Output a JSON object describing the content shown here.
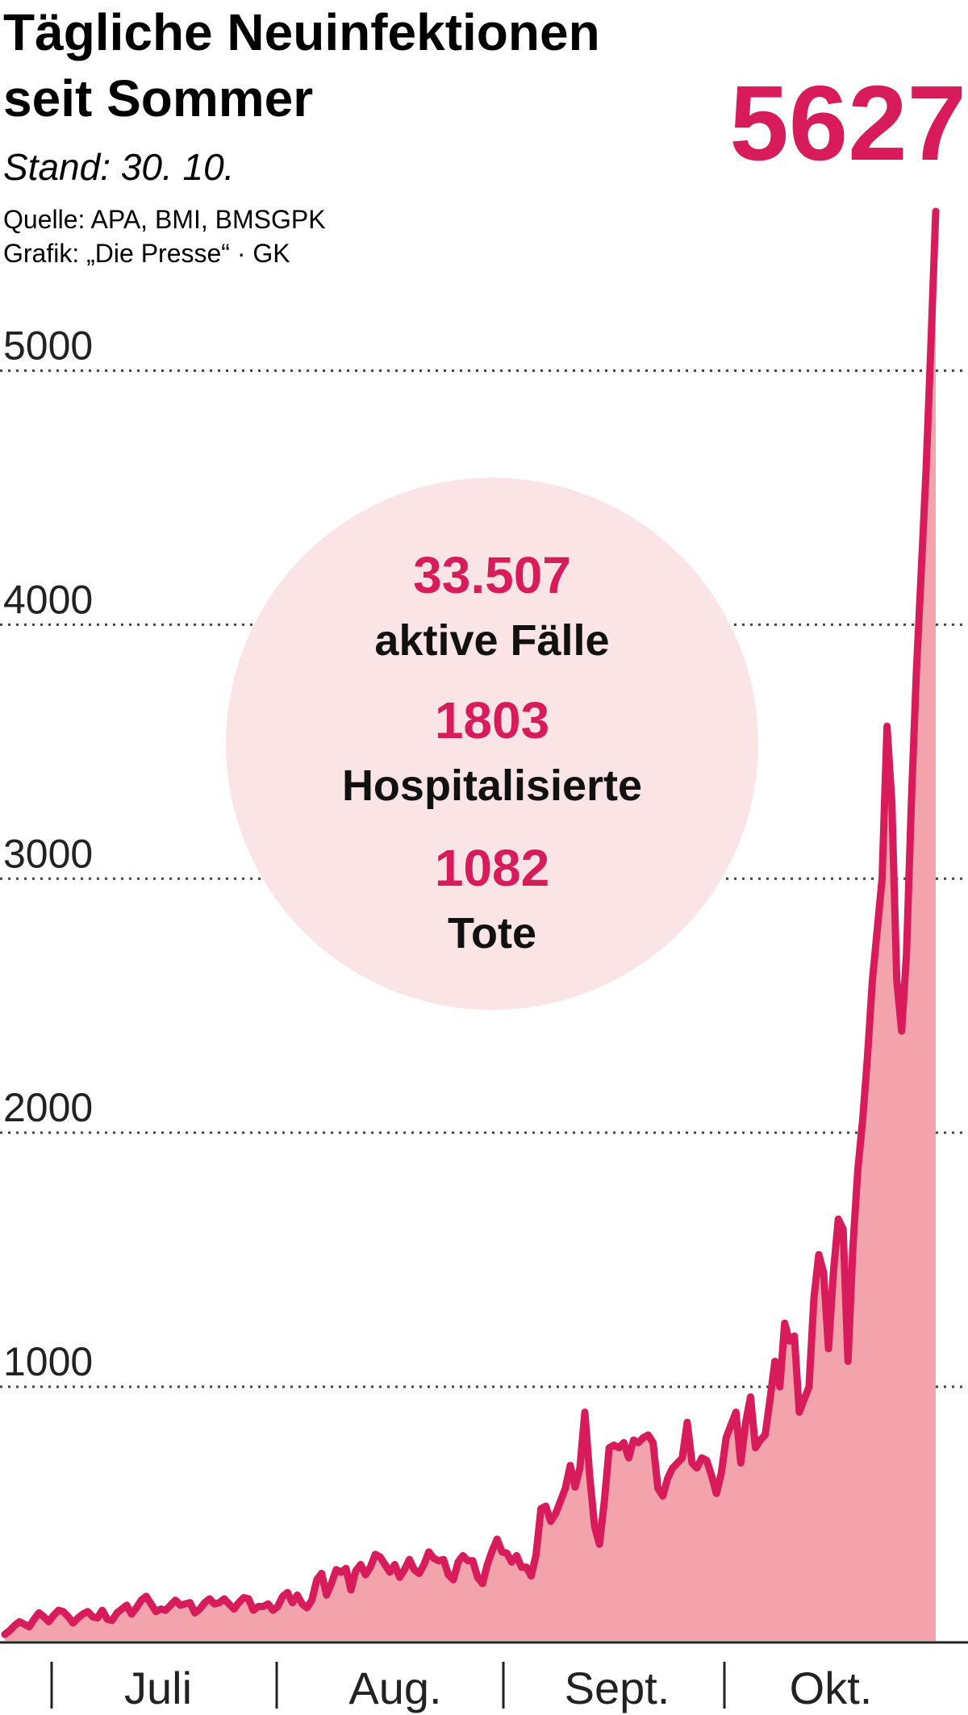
{
  "title_line1": "Tägliche Neuinfektionen",
  "title_line2": "seit Sommer",
  "stand": "Stand: 30. 10.",
  "source": "Quelle: APA, BMI, BMSGPK",
  "credit": "Grafik: „Die Presse“ · GK",
  "peak_label": "5627",
  "stats": [
    {
      "value": "33.507",
      "label": "aktive Fälle"
    },
    {
      "value": "1803",
      "label": "Hospitalisierte"
    },
    {
      "value": "1082",
      "label": "Tote"
    }
  ],
  "colors": {
    "accent": "#d81b5a",
    "fill": "#f2a3ab",
    "circle": "#fbe4e6",
    "axis": "#222222"
  },
  "chart_data": {
    "type": "area",
    "title": "Tägliche Neuinfektionen seit Sommer",
    "ylim": [
      0,
      5627
    ],
    "yticks": [
      1000,
      2000,
      3000,
      4000,
      5000
    ],
    "grid": "dotted horizontal",
    "months": [
      "Juli",
      "Aug.",
      "Sept.",
      "Okt."
    ],
    "series": [
      {
        "values": [
          25,
          40,
          60,
          75,
          65,
          55,
          85,
          110,
          95,
          75,
          100,
          120,
          115,
          95,
          70,
          90,
          105,
          115,
          95,
          90,
          120,
          85,
          80,
          110,
          125,
          140,
          105,
          130,
          160,
          175,
          145,
          115,
          125,
          120,
          140,
          160,
          140,
          145,
          150,
          110,
          125,
          150,
          165,
          145,
          150,
          165,
          145,
          125,
          150,
          170,
          165,
          120,
          135,
          135,
          145,
          120,
          135,
          175,
          190,
          150,
          180,
          145,
          130,
          160,
          240,
          265,
          180,
          225,
          280,
          270,
          285,
          200,
          275,
          300,
          260,
          290,
          340,
          330,
          300,
          270,
          300,
          250,
          280,
          320,
          280,
          265,
          300,
          350,
          325,
          315,
          320,
          260,
          240,
          310,
          335,
          315,
          315,
          250,
          225,
          300,
          355,
          400,
          350,
          345,
          310,
          335,
          290,
          290,
          255,
          340,
          520,
          530,
          470,
          500,
          550,
          600,
          690,
          605,
          680,
          900,
          650,
          450,
          380,
          550,
          760,
          770,
          760,
          780,
          720,
          790,
          780,
          800,
          810,
          780,
          600,
          570,
          640,
          680,
          700,
          720,
          860,
          700,
          680,
          720,
          710,
          650,
          580,
          660,
          800,
          850,
          900,
          700,
          860,
          960,
          760,
          790,
          810,
          950,
          1100,
          1000,
          1250,
          1180,
          1200,
          900,
          950,
          1000,
          1350,
          1520,
          1450,
          1150,
          1450,
          1660,
          1620,
          1100,
          1550,
          1850,
          2050,
          2300,
          2600,
          2800,
          3000,
          3600,
          3300,
          2600,
          2400,
          2700,
          3300,
          3800,
          4200,
          4600,
          5100,
          5627
        ]
      }
    ]
  }
}
